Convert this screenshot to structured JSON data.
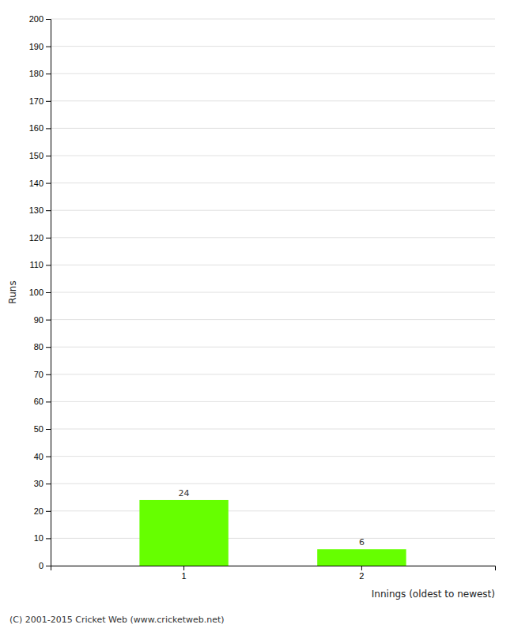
{
  "chart_data": {
    "type": "bar",
    "categories": [
      "1",
      "2"
    ],
    "values": [
      24,
      6
    ],
    "color": "#66ff00",
    "ylabel": "Runs",
    "xlabel": "Innings (oldest to newest)",
    "ylim": [
      0,
      200
    ],
    "yticks": [
      0,
      10,
      20,
      30,
      40,
      50,
      60,
      70,
      80,
      90,
      100,
      110,
      120,
      130,
      140,
      150,
      160,
      170,
      180,
      190,
      200
    ],
    "grid": true,
    "data_labels": true,
    "annotations": [
      "(C) 2001-2015 Cricket Web (www.cricketweb.net)"
    ]
  }
}
